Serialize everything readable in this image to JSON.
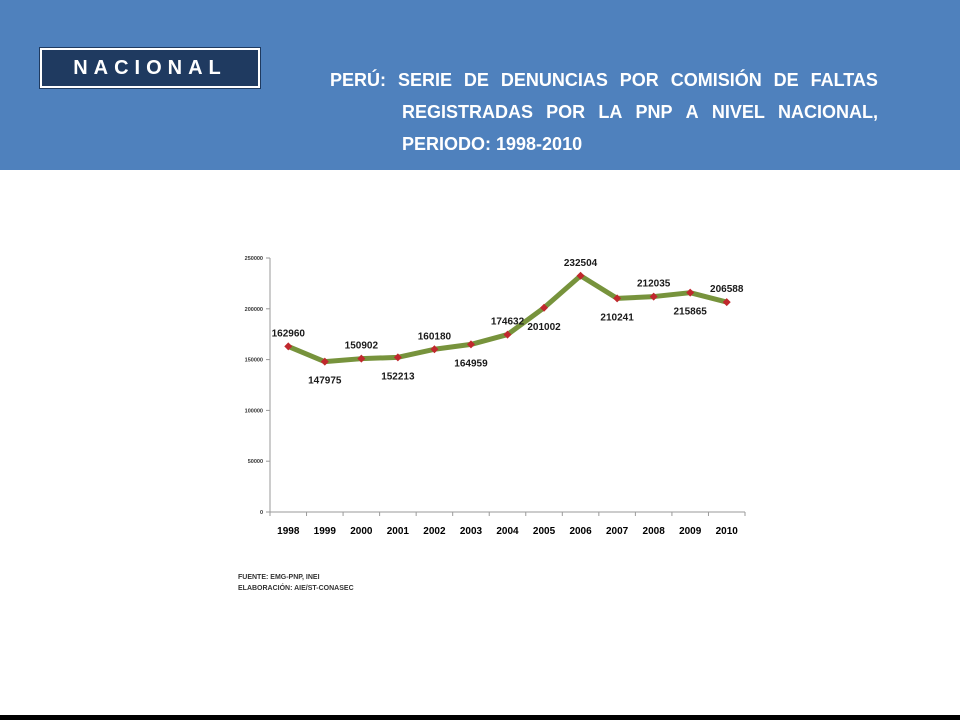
{
  "header": {
    "badge": "NACIONAL",
    "title_line1_words": [
      "PERÚ:",
      "SERIE",
      "DE",
      "DENUNCIAS",
      "POR",
      "COMISIÓN",
      "DE",
      "FALTAS"
    ],
    "title_line2_words": [
      "REGISTRADAS",
      "POR",
      "LA",
      "PNP",
      "A",
      "NIVEL",
      "NACIONAL,"
    ],
    "title_line3": "PERIODO: 1998-2010"
  },
  "chart_data": {
    "type": "line",
    "x": [
      "1998",
      "1999",
      "2000",
      "2001",
      "2002",
      "2003",
      "2004",
      "2005",
      "2006",
      "2007",
      "2008",
      "2009",
      "2010"
    ],
    "y_tick_labels": [
      "0",
      "50000",
      "100000",
      "150000",
      "200000",
      "250000"
    ],
    "ylim": [
      0,
      250000
    ],
    "series": [
      {
        "values": [
          162960,
          147975,
          150902,
          152213,
          160180,
          164959,
          174632,
          201002,
          232504,
          210241,
          212035,
          215865,
          206588
        ]
      }
    ],
    "data_labels": [
      "162960",
      "147975",
      "150902",
      "152213",
      "160180",
      "164959",
      "174632",
      "201002",
      "232504",
      "210241",
      "212035",
      "215865",
      "206588"
    ],
    "line_color": "#77933c",
    "marker_color": "#c0282d",
    "grid": false,
    "legend": "none"
  },
  "footer": {
    "source": "FUENTE: EMG-PNP, INEI",
    "elaboration": "ELABORACIÓN: AIE/ST-CONASEC"
  }
}
